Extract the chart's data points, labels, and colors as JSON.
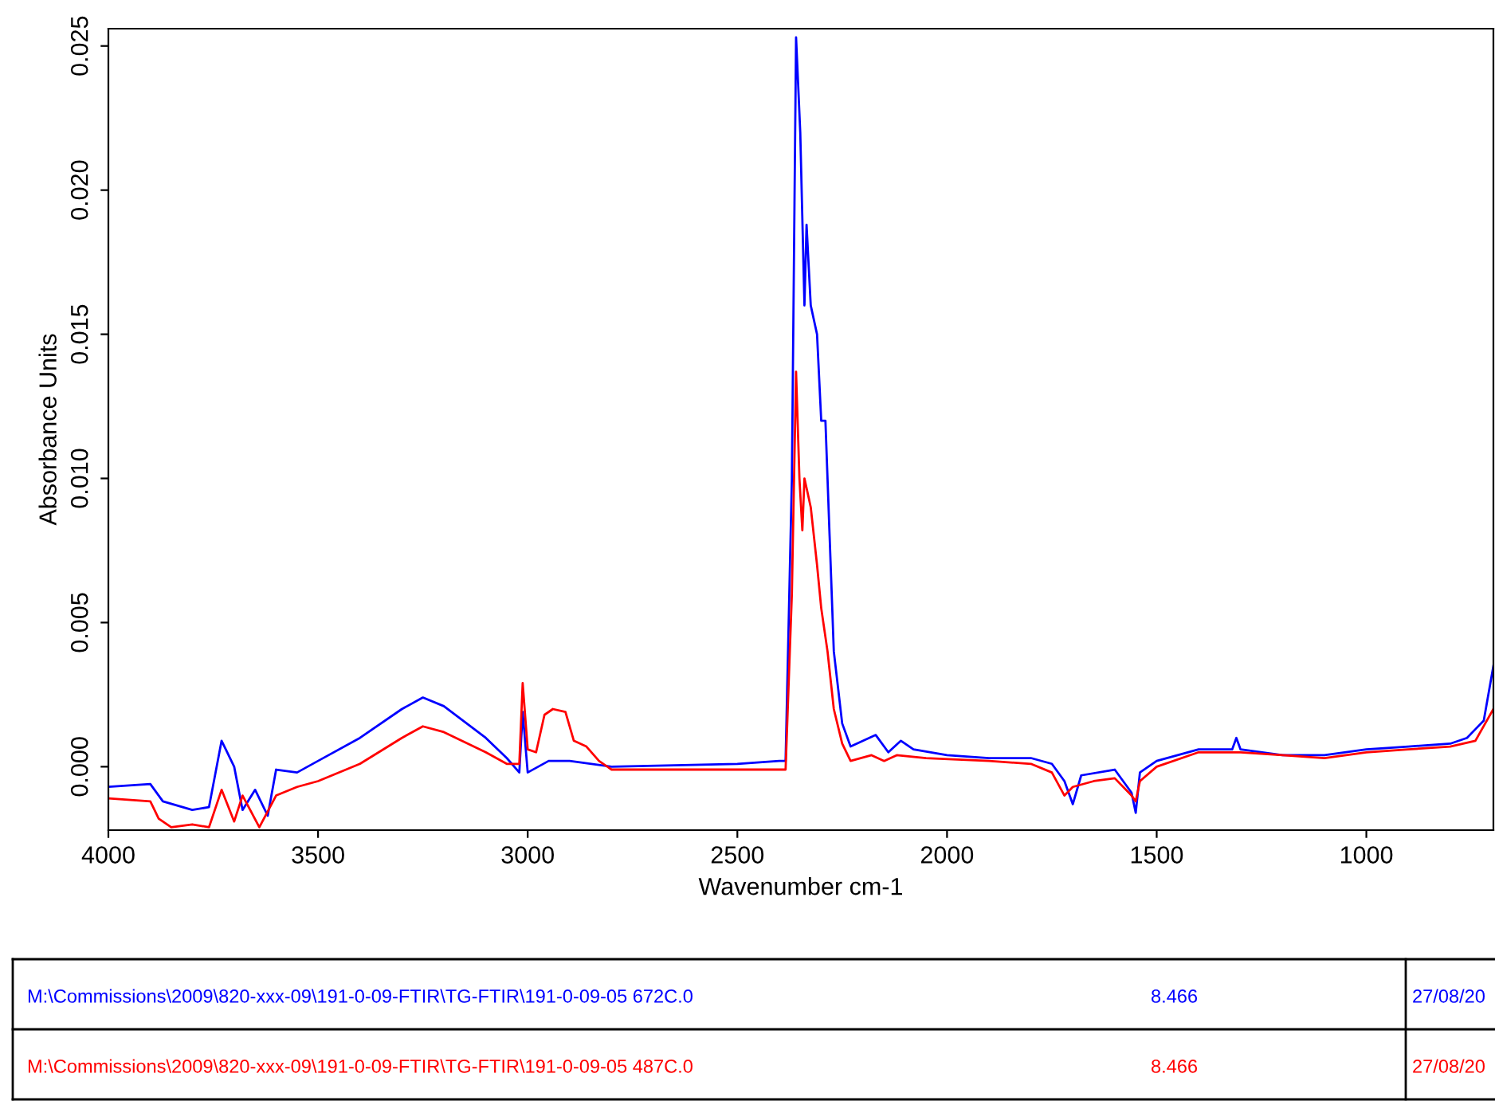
{
  "chart_data": {
    "type": "line",
    "xlabel": "Wavenumber cm-1",
    "ylabel": "Absorbance Units",
    "xlim": [
      4000,
      697
    ],
    "ylim": [
      -0.0022,
      0.0256
    ],
    "xticks": [
      4000,
      3500,
      3000,
      2500,
      2000,
      1500,
      1000
    ],
    "yticks": [
      {
        "value": 0,
        "label": "0.000"
      },
      {
        "value": 0.005,
        "label": "0.005"
      },
      {
        "value": 0.01,
        "label": "0.010"
      },
      {
        "value": 0.015,
        "label": "0.015"
      },
      {
        "value": 0.02,
        "label": "0.020"
      },
      {
        "value": 0.025,
        "label": "0.025"
      }
    ],
    "grid": false,
    "legend": "bottom",
    "marker": "none",
    "line_style": "solid",
    "series": [
      {
        "name": "M:\\Commissions\\2009\\820-xxx-09\\191-0-09-FTIR\\TG-FTIR\\191-0-09-05 672C.0",
        "color": "#0000ff",
        "x": [
          4000,
          3900,
          3870,
          3800,
          3760,
          3730,
          3720,
          3700,
          3680,
          3650,
          3620,
          3600,
          3550,
          3500,
          3400,
          3300,
          3250,
          3200,
          3100,
          3050,
          3020,
          3012,
          3000,
          2950,
          2900,
          2800,
          2500,
          2400,
          2385,
          2370,
          2360,
          2350,
          2340,
          2335,
          2325,
          2310,
          2300,
          2290,
          2280,
          2270,
          2250,
          2230,
          2200,
          2170,
          2140,
          2110,
          2080,
          2000,
          1900,
          1800,
          1750,
          1720,
          1700,
          1680,
          1600,
          1560,
          1550,
          1540,
          1500,
          1400,
          1320,
          1310,
          1300,
          1200,
          1100,
          1000,
          900,
          800,
          760,
          740,
          720,
          697
        ],
        "values": [
          -0.0007,
          -0.0006,
          -0.0012,
          -0.0015,
          -0.0014,
          0.0009,
          0.0006,
          0.0,
          -0.0015,
          -0.0008,
          -0.0017,
          -0.0001,
          -0.0002,
          0.0002,
          0.001,
          0.002,
          0.0024,
          0.0021,
          0.001,
          0.0003,
          -0.0002,
          0.0019,
          -0.0002,
          0.0002,
          0.0002,
          0.0,
          0.0001,
          0.0002,
          0.0002,
          0.01,
          0.0253,
          0.022,
          0.016,
          0.0188,
          0.016,
          0.015,
          0.012,
          0.012,
          0.008,
          0.004,
          0.0015,
          0.0007,
          0.0009,
          0.0011,
          0.0005,
          0.0009,
          0.0006,
          0.0004,
          0.0003,
          0.0003,
          0.0001,
          -0.0005,
          -0.0013,
          -0.0003,
          -0.0001,
          -0.0009,
          -0.0016,
          -0.0002,
          0.0002,
          0.0006,
          0.0006,
          0.001,
          0.0006,
          0.0004,
          0.0004,
          0.0006,
          0.0007,
          0.0008,
          0.001,
          0.0013,
          0.0016,
          0.0035
        ]
      },
      {
        "name": "M:\\Commissions\\2009\\820-xxx-09\\191-0-09-FTIR\\TG-FTIR\\191-0-09-05 487C.0",
        "color": "#ff0000",
        "x": [
          4000,
          3900,
          3880,
          3850,
          3800,
          3760,
          3730,
          3700,
          3680,
          3640,
          3600,
          3550,
          3500,
          3400,
          3300,
          3250,
          3200,
          3100,
          3050,
          3020,
          3012,
          3000,
          2980,
          2960,
          2940,
          2910,
          2890,
          2860,
          2830,
          2800,
          2700,
          2500,
          2400,
          2385,
          2370,
          2360,
          2352,
          2345,
          2340,
          2325,
          2310,
          2300,
          2285,
          2270,
          2250,
          2230,
          2180,
          2150,
          2120,
          2050,
          1900,
          1800,
          1750,
          1720,
          1700,
          1650,
          1600,
          1560,
          1550,
          1540,
          1500,
          1400,
          1300,
          1200,
          1100,
          1000,
          900,
          800,
          740,
          697
        ],
        "values": [
          -0.0011,
          -0.0012,
          -0.0018,
          -0.0021,
          -0.002,
          -0.0021,
          -0.0008,
          -0.0019,
          -0.001,
          -0.0021,
          -0.001,
          -0.0007,
          -0.0005,
          0.0001,
          0.001,
          0.0014,
          0.0012,
          0.0005,
          0.0001,
          0.0001,
          0.0029,
          0.0006,
          0.0005,
          0.0018,
          0.002,
          0.0019,
          0.0009,
          0.0007,
          0.0002,
          -0.0001,
          -0.0001,
          -0.0001,
          -0.0001,
          -0.0001,
          0.006,
          0.0137,
          0.01,
          0.0082,
          0.01,
          0.009,
          0.007,
          0.0055,
          0.004,
          0.002,
          0.0008,
          0.0002,
          0.0004,
          0.0002,
          0.0004,
          0.0003,
          0.0002,
          0.0001,
          -0.0002,
          -0.001,
          -0.0007,
          -0.0005,
          -0.0004,
          -0.001,
          -0.0012,
          -0.0005,
          0.0,
          0.0005,
          0.0005,
          0.0004,
          0.0003,
          0.0005,
          0.0006,
          0.0007,
          0.0009,
          0.002
        ]
      }
    ],
    "annotations": [
      "8.466",
      "27/08/20",
      "8.466",
      "27/08/20"
    ]
  }
}
